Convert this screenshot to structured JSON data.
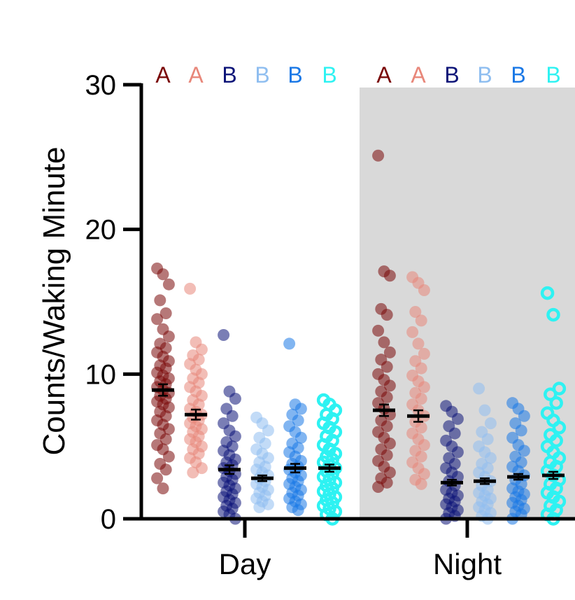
{
  "chart_data": {
    "type": "scatter",
    "title": "",
    "xlabel": "",
    "ylabel": "Counts/Waking Minute",
    "ylim": [
      0,
      30
    ],
    "yticks": [
      "0",
      "10",
      "20",
      "30"
    ],
    "categories": [
      "Day",
      "Night"
    ],
    "shaded_category": "Night",
    "group_colors": [
      "#7a0a0a",
      "#e8877a",
      "#0c1478",
      "#8fbef0",
      "#1a78e6",
      "#2ef2f2"
    ],
    "group_markers": [
      "filled",
      "filled",
      "filled",
      "filled",
      "filled",
      "open"
    ],
    "significance_letters": {
      "Day": [
        "A",
        "A",
        "B",
        "B",
        "B",
        "B"
      ],
      "Night": [
        "A",
        "A",
        "B",
        "B",
        "B",
        "B"
      ]
    },
    "series": [
      {
        "category": "Day",
        "group": 1,
        "mean": 8.9,
        "sem": 0.3,
        "values": [
          17.3,
          16.9,
          16.2,
          15.1,
          14.2,
          13.8,
          13.1,
          12.6,
          12.1,
          11.8,
          11.5,
          11.2,
          10.9,
          10.6,
          10.4,
          10.1,
          9.9,
          9.7,
          9.5,
          9.3,
          9.1,
          8.9,
          8.7,
          8.5,
          8.3,
          8.1,
          7.9,
          7.7,
          7.4,
          7.1,
          6.8,
          6.5,
          6.2,
          5.9,
          5.5,
          5.1,
          4.8,
          4.3,
          3.8,
          3.4,
          2.8,
          2.1
        ]
      },
      {
        "category": "Day",
        "group": 2,
        "mean": 7.2,
        "sem": 0.25,
        "values": [
          15.9,
          12.2,
          11.7,
          11.3,
          11.0,
          10.7,
          10.3,
          10.0,
          9.7,
          9.4,
          9.1,
          8.8,
          8.5,
          8.2,
          7.9,
          7.6,
          7.4,
          7.2,
          7.0,
          6.8,
          6.6,
          6.4,
          6.2,
          6.0,
          5.7,
          5.5,
          5.3,
          5.0,
          4.8,
          4.5,
          4.2,
          3.9,
          3.5,
          3.2
        ]
      },
      {
        "category": "Day",
        "group": 3,
        "mean": 3.4,
        "sem": 0.2,
        "values": [
          12.7,
          8.8,
          8.3,
          7.6,
          7.1,
          6.6,
          6.1,
          5.7,
          5.3,
          5.0,
          4.7,
          4.4,
          4.1,
          3.9,
          3.7,
          3.5,
          3.3,
          3.1,
          2.9,
          2.7,
          2.5,
          2.3,
          2.1,
          1.9,
          1.7,
          1.5,
          1.3,
          1.1,
          0.9,
          0.7,
          0.5,
          0.3,
          0.0
        ]
      },
      {
        "category": "Day",
        "group": 4,
        "mean": 2.8,
        "sem": 0.1,
        "values": [
          7.0,
          6.6,
          6.1,
          5.6,
          5.2,
          4.8,
          4.5,
          4.2,
          3.9,
          3.6,
          3.4,
          3.2,
          3.0,
          2.8,
          2.6,
          2.4,
          2.2,
          2.0,
          1.8,
          1.6,
          1.4,
          1.2,
          1.0,
          0.8
        ]
      },
      {
        "category": "Day",
        "group": 5,
        "mean": 3.5,
        "sem": 0.2,
        "values": [
          12.1,
          7.9,
          7.6,
          7.2,
          6.8,
          6.4,
          6.0,
          5.6,
          5.2,
          4.9,
          4.6,
          4.3,
          4.0,
          3.8,
          3.6,
          3.4,
          3.2,
          3.0,
          2.8,
          2.6,
          2.4,
          2.2,
          2.0,
          1.8,
          1.6,
          1.4,
          1.2,
          1.0,
          0.8,
          0.6
        ]
      },
      {
        "category": "Day",
        "group": 6,
        "mean": 3.5,
        "sem": 0.15,
        "values": [
          8.2,
          7.9,
          7.5,
          7.2,
          6.9,
          6.6,
          6.3,
          6.0,
          5.7,
          5.4,
          5.1,
          4.8,
          4.5,
          4.3,
          4.1,
          3.9,
          3.7,
          3.5,
          3.3,
          3.1,
          2.9,
          2.7,
          2.5,
          2.3,
          2.1,
          1.9,
          1.7,
          1.5,
          1.3,
          1.1,
          0.9,
          0.7,
          0.5,
          0.3,
          0.0
        ]
      },
      {
        "category": "Night",
        "group": 1,
        "mean": 7.5,
        "sem": 0.3,
        "values": [
          25.1,
          17.1,
          16.8,
          14.5,
          14.1,
          13.0,
          12.2,
          11.5,
          11.0,
          10.5,
          10.0,
          9.6,
          9.2,
          8.8,
          8.4,
          8.0,
          7.6,
          7.2,
          6.8,
          6.4,
          6.0,
          5.6,
          5.2,
          4.8,
          4.4,
          4.0,
          3.6,
          3.2,
          2.8,
          2.5,
          2.2
        ]
      },
      {
        "category": "Night",
        "group": 2,
        "mean": 7.1,
        "sem": 0.3,
        "values": [
          16.7,
          16.3,
          15.8,
          14.3,
          13.7,
          12.9,
          12.1,
          11.4,
          10.9,
          10.4,
          9.9,
          9.5,
          9.1,
          8.7,
          8.3,
          7.9,
          7.5,
          7.1,
          6.7,
          6.3,
          5.9,
          5.5,
          5.1,
          4.7,
          4.3,
          3.9,
          3.5,
          3.1,
          2.7,
          2.4
        ]
      },
      {
        "category": "Night",
        "group": 3,
        "mean": 2.5,
        "sem": 0.1,
        "values": [
          7.8,
          7.4,
          6.9,
          6.4,
          5.9,
          5.4,
          5.0,
          4.6,
          4.2,
          3.8,
          3.5,
          3.2,
          2.9,
          2.6,
          2.3,
          2.0,
          1.8,
          1.6,
          1.4,
          1.2,
          1.0,
          0.8,
          0.6,
          0.4,
          0.2,
          0.0
        ]
      },
      {
        "category": "Night",
        "group": 4,
        "mean": 2.6,
        "sem": 0.1,
        "values": [
          9.0,
          7.5,
          6.6,
          6.0,
          5.5,
          5.0,
          4.6,
          4.2,
          3.8,
          3.5,
          3.2,
          2.9,
          2.6,
          2.3,
          2.0,
          1.8,
          1.6,
          1.4,
          1.2,
          1.0,
          0.8,
          0.6,
          0.4,
          0.2,
          0.0
        ]
      },
      {
        "category": "Night",
        "group": 5,
        "mean": 2.9,
        "sem": 0.1,
        "values": [
          8.0,
          7.6,
          7.1,
          6.6,
          6.1,
          5.6,
          5.1,
          4.7,
          4.3,
          3.9,
          3.6,
          3.3,
          3.0,
          2.7,
          2.4,
          2.1,
          1.9,
          1.7,
          1.5,
          1.3,
          1.1,
          0.9,
          0.7,
          0.5,
          0.3,
          0.0
        ]
      },
      {
        "category": "Night",
        "group": 6,
        "mean": 3.0,
        "sem": 0.15,
        "values": [
          15.6,
          14.1,
          9.0,
          8.6,
          8.0,
          7.3,
          6.8,
          6.3,
          5.8,
          5.4,
          5.0,
          4.6,
          4.2,
          3.9,
          3.6,
          3.3,
          3.0,
          2.7,
          2.4,
          2.1,
          1.8,
          1.5,
          1.2,
          0.9,
          0.6,
          0.3,
          0.0
        ]
      }
    ]
  }
}
